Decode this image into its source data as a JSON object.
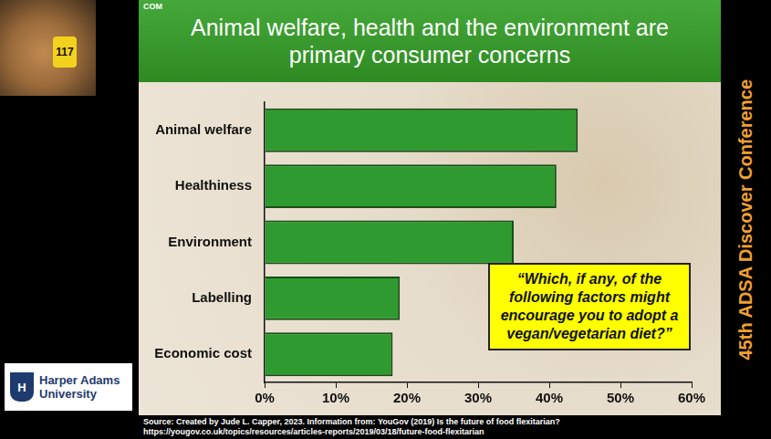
{
  "chart_data": {
    "type": "bar",
    "orientation": "horizontal",
    "title": "Animal welfare, health and the environment are primary consumer concerns",
    "categories": [
      "Animal welfare",
      "Healthiness",
      "Environment",
      "Labelling",
      "Economic cost"
    ],
    "values": [
      44,
      41,
      35,
      19,
      18
    ],
    "color": "#2f9a2f",
    "xlim": [
      0,
      60
    ],
    "xticks": [
      {
        "value": 0,
        "label": "0%"
      },
      {
        "value": 10,
        "label": "10%"
      },
      {
        "value": 20,
        "label": "20%"
      },
      {
        "value": 30,
        "label": "30%"
      },
      {
        "value": 40,
        "label": "40%"
      },
      {
        "value": 50,
        "label": "50%"
      },
      {
        "value": 60,
        "label": "60%"
      }
    ],
    "grid": false,
    "annotations": [
      "“Which, if any, of the following factors might encourage you to adopt a vegan/vegetarian diet?”"
    ]
  },
  "slide": {
    "corner_label": "COM",
    "ear_tag": "117",
    "side_banner": "45th ADSA Discover Conference",
    "logo_mark": "H",
    "logo": [
      "Harper Adams",
      "University"
    ],
    "source": [
      "Source: Created by Jude L. Capper, 2023. Information from: YouGov (2019) Is the future of food flexitarian?",
      "https://yougov.co.uk/topics/resources/articles-reports/2019/03/18/future-food-flexitarian"
    ]
  }
}
